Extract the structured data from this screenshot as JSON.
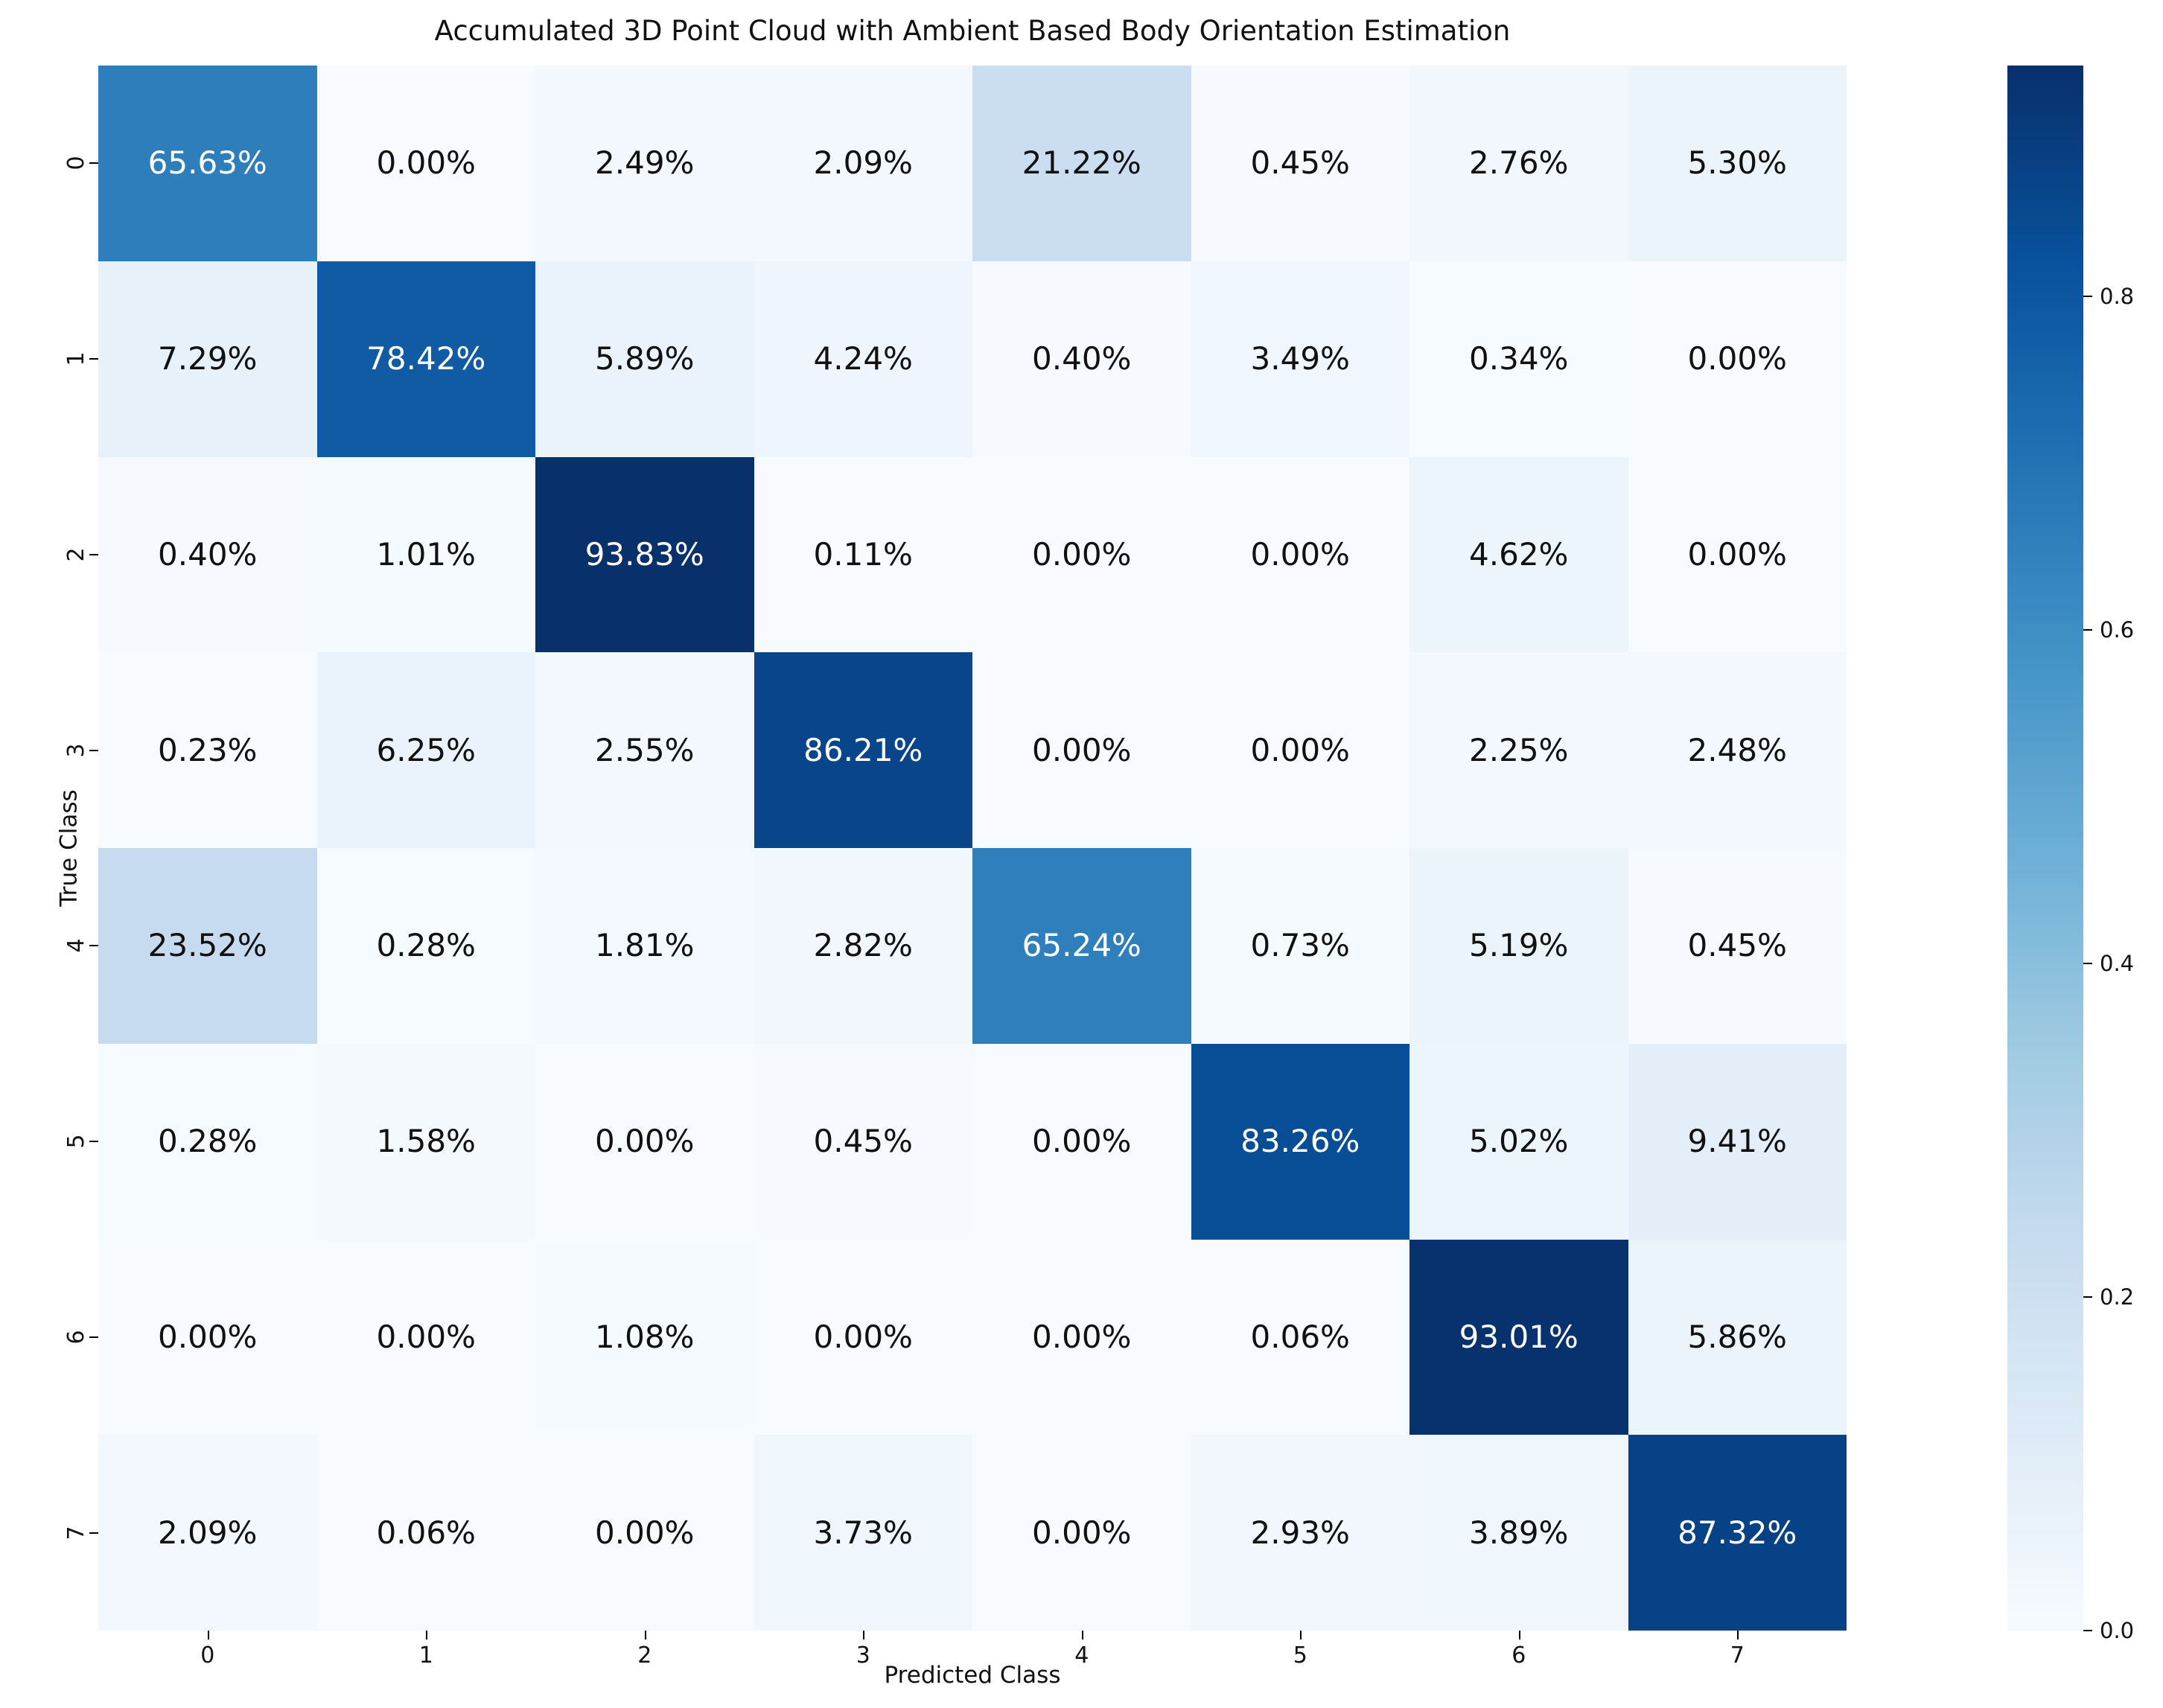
{
  "chart_data": {
    "type": "heatmap",
    "title": "Accumulated 3D Point Cloud with Ambient Based Body Orientation Estimation",
    "xlabel": "Predicted Class",
    "ylabel": "True Class",
    "x_tick_labels": [
      "0",
      "1",
      "2",
      "3",
      "4",
      "5",
      "6",
      "7"
    ],
    "y_tick_labels": [
      "0",
      "1",
      "2",
      "3",
      "4",
      "5",
      "6",
      "7"
    ],
    "values_percent": [
      [
        65.63,
        0.0,
        2.49,
        2.09,
        21.22,
        0.45,
        2.76,
        5.3
      ],
      [
        7.29,
        78.42,
        5.89,
        4.24,
        0.4,
        3.49,
        0.34,
        0.0
      ],
      [
        0.4,
        1.01,
        93.83,
        0.11,
        0.0,
        0.0,
        4.62,
        0.0
      ],
      [
        0.23,
        6.25,
        2.55,
        86.21,
        0.0,
        0.0,
        2.25,
        2.48
      ],
      [
        23.52,
        0.28,
        1.81,
        2.82,
        65.24,
        0.73,
        5.19,
        0.45
      ],
      [
        0.28,
        1.58,
        0.0,
        0.45,
        0.0,
        83.26,
        5.02,
        9.41
      ],
      [
        0.0,
        0.0,
        1.08,
        0.0,
        0.0,
        0.06,
        93.01,
        5.86
      ],
      [
        2.09,
        0.06,
        0.0,
        3.73,
        0.0,
        2.93,
        3.89,
        87.32
      ]
    ],
    "cell_label_suffix": "%",
    "cell_label_decimals": 2,
    "colormap": "Blues",
    "colormap_anchor_colors": [
      "#f7fbff",
      "#deebf7",
      "#c6dbef",
      "#9ecae1",
      "#6baed6",
      "#4292c6",
      "#2171b5",
      "#08519c",
      "#08306b"
    ],
    "vmin": 0.0,
    "vmax": 0.9383,
    "colorbar_ticks": [
      0.0,
      0.2,
      0.4,
      0.6,
      0.8
    ],
    "colorbar_tick_decimals": 1,
    "legend_position": "right-colorbar",
    "grid": false,
    "text_color_dark": "#111111",
    "text_color_light": "#ffffff"
  }
}
